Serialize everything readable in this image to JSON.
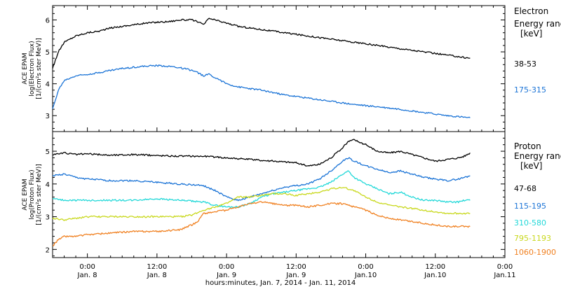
{
  "chart_data": {
    "type": "line",
    "xlabel": "hours:minutes, Jan.  7, 2014 - Jan. 11, 2014",
    "x_ticks": [
      {
        "h": 6,
        "top": "0:00",
        "bottom": "Jan. 8"
      },
      {
        "h": 18,
        "top": "12:00",
        "bottom": "Jan. 8"
      },
      {
        "h": 30,
        "top": "0:00",
        "bottom": "Jan. 9"
      },
      {
        "h": 42,
        "top": "12:00",
        "bottom": "Jan. 9"
      },
      {
        "h": 54,
        "top": "0:00",
        "bottom": "Jan.10"
      },
      {
        "h": 66,
        "top": "12:00",
        "bottom": "Jan.10"
      },
      {
        "h": 78,
        "top": "0:00",
        "bottom": "Jan.11"
      }
    ],
    "xlim_hours": [
      0,
      78
    ],
    "panels": [
      {
        "id": "electron",
        "ylabel_lines": [
          "ACE EPAM",
          "log(Electron Flux)",
          "[1/(cm²s ster MeV)]"
        ],
        "ylim": [
          2.5,
          6.45
        ],
        "yticks": [
          3,
          4,
          5,
          6
        ],
        "legend_title": [
          "Electron",
          "Energy ranges",
          "[keV]"
        ],
        "series": [
          {
            "name": "38-53",
            "color": "#000000",
            "x": [
              0,
              0.5,
              1,
              2,
              4,
              6,
              8,
              10,
              12,
              14,
              16,
              18,
              20,
              22,
              24,
              25,
              26,
              27,
              28,
              30,
              32,
              34,
              36,
              40,
              44,
              48,
              52,
              56,
              60,
              64,
              66,
              68,
              70,
              72
            ],
            "y": [
              4.5,
              4.75,
              5.0,
              5.3,
              5.5,
              5.6,
              5.65,
              5.75,
              5.8,
              5.85,
              5.9,
              5.93,
              5.95,
              6.0,
              6.0,
              5.95,
              5.85,
              6.05,
              6.0,
              5.9,
              5.8,
              5.75,
              5.7,
              5.6,
              5.5,
              5.4,
              5.3,
              5.2,
              5.1,
              5.0,
              4.95,
              4.9,
              4.85,
              4.8
            ]
          },
          {
            "name": "175-315",
            "color": "#1a73d6",
            "x": [
              0,
              0.5,
              1,
              2,
              4,
              6,
              8,
              10,
              12,
              14,
              16,
              18,
              20,
              22,
              24,
              25,
              26,
              27,
              28,
              30,
              32,
              34,
              36,
              40,
              44,
              48,
              52,
              56,
              60,
              64,
              66,
              68,
              70,
              72
            ],
            "y": [
              3.2,
              3.5,
              3.8,
              4.1,
              4.25,
              4.3,
              4.35,
              4.42,
              4.48,
              4.52,
              4.55,
              4.57,
              4.55,
              4.5,
              4.42,
              4.35,
              4.25,
              4.3,
              4.2,
              4.0,
              3.9,
              3.85,
              3.8,
              3.65,
              3.55,
              3.45,
              3.35,
              3.28,
              3.2,
              3.1,
              3.05,
              3.0,
              2.97,
              2.93
            ]
          }
        ]
      },
      {
        "id": "proton",
        "ylabel_lines": [
          "ACE EPAM",
          "log(Proton Flux)",
          "[1/(cm²s ster MeV)]"
        ],
        "ylim": [
          1.75,
          5.6
        ],
        "yticks": [
          2,
          3,
          4,
          5
        ],
        "legend_title": [
          "Proton",
          "Energy ranges",
          "[keV]"
        ],
        "series": [
          {
            "name": "47-68",
            "color": "#000000",
            "x": [
              0,
              2,
              4,
              6,
              10,
              14,
              18,
              22,
              26,
              30,
              34,
              38,
              42,
              44,
              46,
              48,
              50,
              51,
              52,
              54,
              56,
              58,
              60,
              62,
              64,
              66,
              68,
              70,
              71,
              72
            ],
            "y": [
              4.9,
              4.95,
              4.9,
              4.92,
              4.88,
              4.9,
              4.87,
              4.85,
              4.85,
              4.8,
              4.75,
              4.7,
              4.65,
              4.55,
              4.6,
              4.8,
              5.1,
              5.3,
              5.35,
              5.2,
              5.0,
              4.95,
              5.0,
              4.9,
              4.8,
              4.7,
              4.75,
              4.8,
              4.85,
              4.95
            ]
          },
          {
            "name": "115-195",
            "color": "#1a73d6",
            "x": [
              0,
              2,
              4,
              6,
              10,
              14,
              18,
              22,
              26,
              28,
              30,
              32,
              34,
              36,
              38,
              40,
              42,
              44,
              46,
              48,
              50,
              51,
              52,
              54,
              56,
              58,
              60,
              62,
              64,
              66,
              68,
              70,
              71,
              72
            ],
            "y": [
              4.25,
              4.3,
              4.2,
              4.15,
              4.1,
              4.1,
              4.05,
              4.0,
              3.95,
              3.8,
              3.6,
              3.5,
              3.6,
              3.7,
              3.8,
              3.9,
              3.95,
              4.0,
              4.15,
              4.4,
              4.7,
              4.8,
              4.7,
              4.55,
              4.45,
              4.35,
              4.4,
              4.3,
              4.2,
              4.15,
              4.1,
              4.15,
              4.2,
              4.25
            ]
          },
          {
            "name": "310-580",
            "color": "#22d8d8",
            "x": [
              0,
              2,
              4,
              6,
              10,
              14,
              18,
              22,
              26,
              28,
              30,
              32,
              34,
              36,
              38,
              40,
              42,
              44,
              46,
              48,
              50,
              51,
              52,
              54,
              56,
              58,
              60,
              62,
              64,
              66,
              68,
              70,
              71,
              72
            ],
            "y": [
              3.55,
              3.5,
              3.5,
              3.5,
              3.5,
              3.5,
              3.55,
              3.5,
              3.45,
              3.35,
              3.3,
              3.3,
              3.4,
              3.6,
              3.7,
              3.75,
              3.8,
              3.85,
              3.9,
              4.05,
              4.3,
              4.4,
              4.2,
              4.0,
              3.85,
              3.7,
              3.75,
              3.6,
              3.5,
              3.5,
              3.45,
              3.45,
              3.5,
              3.5
            ]
          },
          {
            "name": "795-1193",
            "color": "#c8d81c",
            "x": [
              0,
              2,
              4,
              6,
              10,
              14,
              18,
              22,
              24,
              26,
              28,
              30,
              32,
              34,
              36,
              38,
              40,
              42,
              44,
              46,
              48,
              50,
              51,
              52,
              54,
              56,
              58,
              60,
              62,
              64,
              66,
              68,
              70,
              71,
              72
            ],
            "y": [
              2.95,
              2.9,
              2.95,
              3.0,
              3.0,
              3.0,
              3.0,
              3.0,
              3.05,
              3.2,
              3.3,
              3.4,
              3.6,
              3.6,
              3.65,
              3.7,
              3.7,
              3.65,
              3.7,
              3.75,
              3.85,
              3.9,
              3.85,
              3.8,
              3.6,
              3.45,
              3.35,
              3.3,
              3.25,
              3.2,
              3.15,
              3.1,
              3.1,
              3.1,
              3.1
            ]
          },
          {
            "name": "1060-1900",
            "color": "#f08020",
            "x": [
              0,
              1,
              2,
              4,
              6,
              10,
              14,
              18,
              22,
              24,
              25,
              26,
              28,
              30,
              32,
              34,
              36,
              38,
              40,
              42,
              44,
              46,
              48,
              50,
              51,
              52,
              54,
              56,
              58,
              60,
              62,
              64,
              66,
              68,
              70,
              71,
              72
            ],
            "y": [
              2.1,
              2.3,
              2.4,
              2.4,
              2.45,
              2.5,
              2.55,
              2.55,
              2.6,
              2.75,
              2.85,
              3.1,
              3.15,
              3.2,
              3.3,
              3.4,
              3.45,
              3.4,
              3.35,
              3.35,
              3.3,
              3.35,
              3.4,
              3.4,
              3.35,
              3.3,
              3.2,
              3.05,
              2.95,
              2.9,
              2.85,
              2.8,
              2.75,
              2.7,
              2.7,
              2.7,
              2.7
            ]
          }
        ]
      }
    ]
  }
}
